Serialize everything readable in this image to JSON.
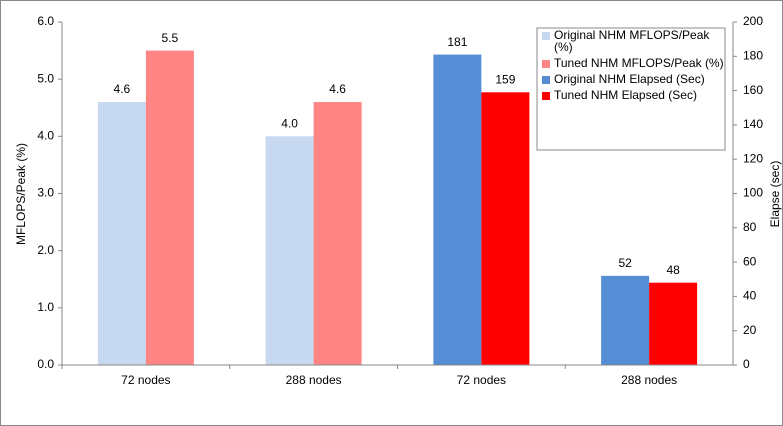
{
  "chart_data": {
    "type": "bar",
    "categories": [
      "72 nodes",
      "288 nodes",
      "72 nodes",
      "288 nodes"
    ],
    "series": [
      {
        "name": "Original NHM MFLOPS/Peak (%)",
        "color": "#c6d9f0",
        "values": [
          4.6,
          4.0,
          null,
          null
        ],
        "value_labels": [
          "4.6",
          "4.0",
          null,
          null
        ]
      },
      {
        "name": "Tuned NHM MFLOPS/Peak (%)",
        "color": "#ff8585",
        "values": [
          5.5,
          4.6,
          null,
          null
        ]
      },
      {
        "name": "Original NHM Elapsed (Sec)",
        "color": "#558ed5",
        "axis": "y2",
        "values": [
          null,
          null,
          181,
          52
        ]
      },
      {
        "name": "Tuned NHM Elapsed (Sec)",
        "color": "#ff0000",
        "axis": "y2",
        "values": [
          null,
          null,
          159,
          48
        ]
      }
    ],
    "ylabel": "MFLOPS/Peak (%)",
    "y2label": "Elapse (sec)",
    "ylim": [
      0,
      6
    ],
    "yticks": [
      {
        "value": 0,
        "label": "0.0"
      },
      {
        "value": 1,
        "label": "1.0"
      },
      {
        "value": 2,
        "label": "2.0"
      },
      {
        "value": 3,
        "label": "3.0"
      },
      {
        "value": 4,
        "label": "4.0"
      },
      {
        "value": 5,
        "label": "5.0"
      },
      {
        "value": 6,
        "label": "6.0"
      }
    ],
    "y2lim": [
      0,
      200
    ],
    "y2ticks": [
      0,
      20,
      40,
      60,
      80,
      100,
      120,
      140,
      160,
      180,
      200
    ],
    "legend": "top-right"
  }
}
